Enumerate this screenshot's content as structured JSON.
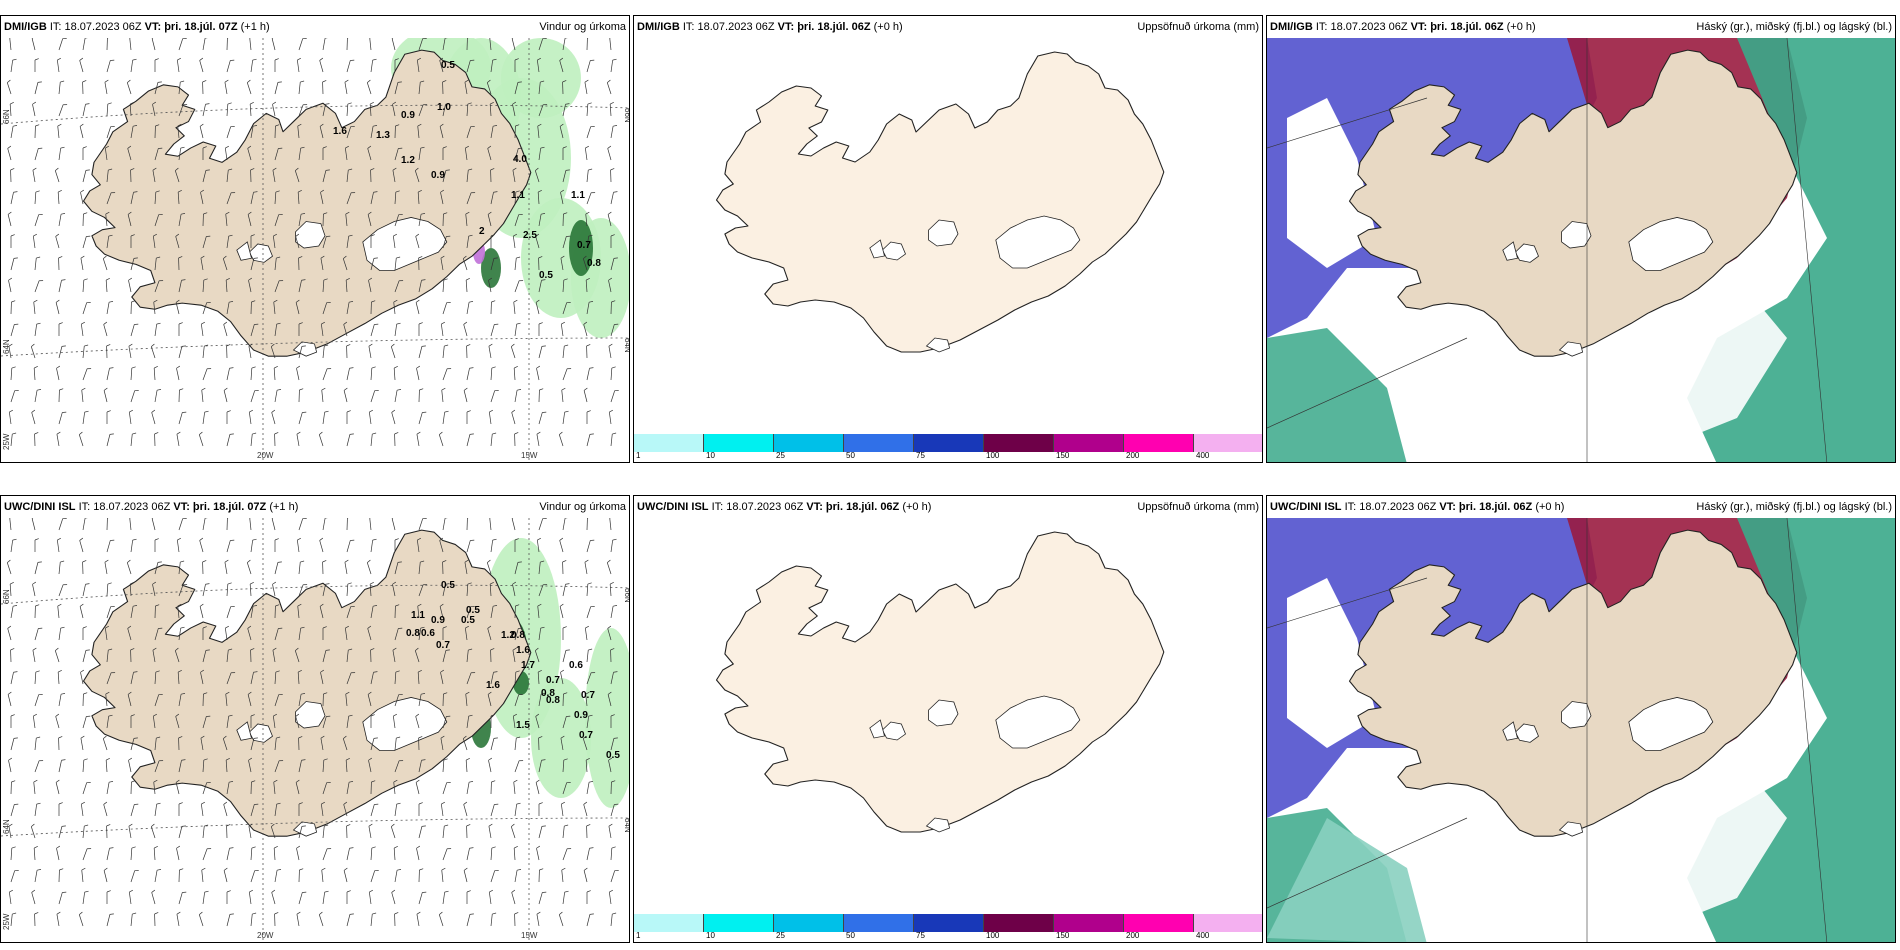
{
  "panels": [
    {
      "model": "DMI/IGB",
      "issue_prefix": "IT: 18.07.2023 06Z",
      "vt": "VT: þri. 18.júl. 07Z",
      "lead": "(+1 h)",
      "title": "Vindur og úrkoma",
      "type": "wind"
    },
    {
      "model": "DMI/IGB",
      "issue_prefix": "IT: 18.07.2023 06Z",
      "vt": "VT: þri. 18.júl. 06Z",
      "lead": "(+0 h)",
      "title": "Uppsöfnuð úrkoma (mm)",
      "type": "accum"
    },
    {
      "model": "DMI/IGB",
      "issue_prefix": "IT: 18.07.2023 06Z",
      "vt": "VT: þri. 18.júl. 06Z",
      "lead": "(+0 h)",
      "title": "Háský (gr.), miðský (fj.bl.) og lágský (bl.)",
      "type": "cloud"
    },
    {
      "model": "UWC/DINI ISL",
      "issue_prefix": "IT: 18.07.2023 06Z",
      "vt": "VT: þri. 18.júl. 07Z",
      "lead": "(+1 h)",
      "title": "Vindur og úrkoma",
      "type": "wind"
    },
    {
      "model": "UWC/DINI ISL",
      "issue_prefix": "IT: 18.07.2023 06Z",
      "vt": "VT: þri. 18.júl. 06Z",
      "lead": "(+0 h)",
      "title": "Uppsöfnuð úrkoma (mm)",
      "type": "accum"
    },
    {
      "model": "UWC/DINI ISL",
      "issue_prefix": "IT: 18.07.2023 06Z",
      "vt": "VT: þri. 18.júl. 06Z",
      "lead": "(+0 h)",
      "title": "Háský (gr.), miðský (fj.bl.) og lágský (bl.)",
      "type": "cloud"
    }
  ],
  "map_labels": {
    "lon_20w": "20W",
    "lon_15w": "15W",
    "lat_66n": "66N",
    "lat_64n": "64N",
    "lon_25w": "25W"
  },
  "colorbar": {
    "labels": [
      "1",
      "10",
      "25",
      "50",
      "75",
      "100",
      "150",
      "200",
      "400"
    ],
    "colors": [
      "#b8f8f8",
      "#00f0f0",
      "#00c0e8",
      "#3070e8",
      "#1838b8",
      "#6e0048",
      "#b0008c",
      "#ff00b0",
      "#f4b0f0"
    ]
  },
  "precip_values_top": [
    "0.5",
    "1.0",
    "0.9",
    "1.6",
    "1.3",
    "1.2",
    "0.9",
    "4.0",
    "1.1",
    "2",
    "2.5",
    "1.1",
    "0.7",
    "0.8",
    "0.5"
  ],
  "precip_values_bottom": [
    "0.5",
    "0.5",
    "1.1",
    "0.9",
    "0.5",
    "0.8",
    "0.6",
    "0.7",
    "1.2",
    "1.6",
    "0.8",
    "1.7",
    "1.6",
    "0.7",
    "0.6",
    "0.7",
    "0.9",
    "0.7",
    "1.5",
    "0.8",
    "0.8",
    "0.5"
  ],
  "colors": {
    "land": "#e8d9c4",
    "land_light": "#fbf0e2",
    "precip_green": "#bff0bf",
    "precip_dark": "#1f6e2e",
    "precip_magenta": "#c070d8",
    "cloud_blue": "#5a5ad0",
    "cloud_red": "#9a1c40",
    "cloud_teal": "#3aa88a"
  }
}
